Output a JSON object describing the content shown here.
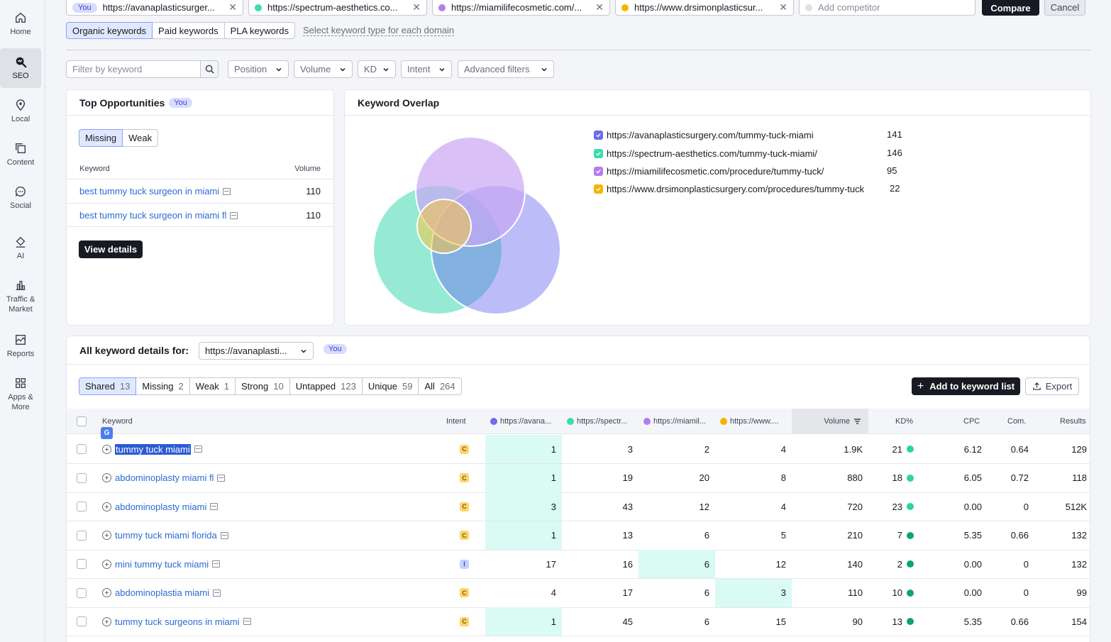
{
  "sidebar": {
    "items": [
      {
        "label": "Home",
        "icon": "home-icon"
      },
      {
        "label": "SEO",
        "icon": "seo-icon",
        "active": true
      },
      {
        "label": "Local",
        "icon": "location-pin-icon"
      },
      {
        "label": "Content",
        "icon": "content-icon"
      },
      {
        "label": "Social",
        "icon": "chat-bubble-icon"
      },
      {
        "label": "AI",
        "icon": "ai-icon"
      },
      {
        "label": "Traffic & Market",
        "icon": "bar-chart-icon"
      },
      {
        "label": "Reports",
        "icon": "reports-icon"
      },
      {
        "label": "Apps & More",
        "icon": "grid-icon"
      }
    ]
  },
  "compare": {
    "you_label": "You",
    "domains": [
      {
        "url": "https://avanaplasticsurger...",
        "color": "#6b6cf0"
      },
      {
        "url": "https://spectrum-aesthetics.co...",
        "color": "#3fd9b0"
      },
      {
        "url": "https://miamilifecosmetic.com/...",
        "color": "#b67cf0"
      },
      {
        "url": "https://www.drsimonplasticsur...",
        "color": "#f5b400"
      }
    ],
    "add_placeholder": "Add competitor",
    "compare_label": "Compare",
    "cancel_label": "Cancel"
  },
  "keyword_types": {
    "tabs": [
      "Organic keywords",
      "Paid keywords",
      "PLA keywords"
    ],
    "active": 0,
    "select_link": "Select keyword type for each domain"
  },
  "filters": {
    "search_placeholder": "Filter by keyword",
    "dropdowns": [
      "Position",
      "Volume",
      "KD",
      "Intent",
      "Advanced filters"
    ]
  },
  "top_opportunities": {
    "title": "Top Opportunities",
    "badge": "You",
    "tabs": [
      "Missing",
      "Weak"
    ],
    "col_keyword": "Keyword",
    "col_volume": "Volume",
    "rows": [
      {
        "keyword": "best tummy tuck surgeon in miami",
        "volume": "110"
      },
      {
        "keyword": "best tummy tuck surgeon in miami fl",
        "volume": "110"
      }
    ],
    "view_details": "View details"
  },
  "overlap": {
    "title": "Keyword Overlap",
    "legend": [
      {
        "url": "https://avanaplasticsurgery.com/tummy-tuck-miami",
        "count": "141",
        "color": "#6b6cf0"
      },
      {
        "url": "https://spectrum-aesthetics.com/tummy-tuck-miami/",
        "count": "146",
        "color": "#3fd9b0"
      },
      {
        "url": "https://miamilifecosmetic.com/procedure/tummy-tuck/",
        "count": "95",
        "color": "#b67cf0"
      },
      {
        "url": "https://www.drsimonplasticsurgery.com/procedures/tummy-tuck",
        "count": "22",
        "color": "#f5b400"
      }
    ]
  },
  "details": {
    "title": "All keyword details for:",
    "domain_select": "https://avanaplasti...",
    "badge": "You",
    "categories": [
      {
        "label": "Shared",
        "count": "13"
      },
      {
        "label": "Missing",
        "count": "2"
      },
      {
        "label": "Weak",
        "count": "1"
      },
      {
        "label": "Strong",
        "count": "10"
      },
      {
        "label": "Untapped",
        "count": "123"
      },
      {
        "label": "Unique",
        "count": "59"
      },
      {
        "label": "All",
        "count": "264"
      }
    ],
    "add_button": "Add to keyword list",
    "export_button": "Export",
    "columns": {
      "keyword": "Keyword",
      "intent": "Intent",
      "d1": "https://avana...",
      "d2": "https://spectr...",
      "d3": "https://miamil...",
      "d4": "https://www....",
      "volume": "Volume",
      "kd": "KD%",
      "cpc": "CPC",
      "com": "Com.",
      "results": "Results"
    },
    "rows": [
      {
        "keyword": "tummy tuck miami",
        "intent": "C",
        "d1": "1",
        "d2": "3",
        "d3": "2",
        "d4": "4",
        "volume": "1.9K",
        "kd": "21",
        "kd_color": "#2bd4a0",
        "cpc": "6.12",
        "com": "0.64",
        "results": "129",
        "best": "d1",
        "selected": true
      },
      {
        "keyword": "abdominoplasty miami fl",
        "intent": "C",
        "d1": "1",
        "d2": "19",
        "d3": "20",
        "d4": "8",
        "volume": "880",
        "kd": "18",
        "kd_color": "#2bd4a0",
        "cpc": "6.05",
        "com": "0.72",
        "results": "118",
        "best": "d1"
      },
      {
        "keyword": "abdominoplasty miami",
        "intent": "C",
        "d1": "3",
        "d2": "43",
        "d3": "12",
        "d4": "4",
        "volume": "720",
        "kd": "23",
        "kd_color": "#2bd4a0",
        "cpc": "0.00",
        "com": "0",
        "results": "512K",
        "best": "d1"
      },
      {
        "keyword": "tummy tuck miami florida",
        "intent": "C",
        "d1": "1",
        "d2": "13",
        "d3": "6",
        "d4": "5",
        "volume": "210",
        "kd": "7",
        "kd_color": "#0fa36e",
        "cpc": "5.35",
        "com": "0.66",
        "results": "132",
        "best": "d1"
      },
      {
        "keyword": "mini tummy tuck miami",
        "intent": "I",
        "d1": "17",
        "d2": "16",
        "d3": "6",
        "d4": "12",
        "volume": "140",
        "kd": "2",
        "kd_color": "#0fa36e",
        "cpc": "0.00",
        "com": "0",
        "results": "132",
        "best": "d3"
      },
      {
        "keyword": "abdominoplastia miami",
        "intent": "C",
        "d1": "4",
        "d2": "17",
        "d3": "6",
        "d4": "3",
        "volume": "110",
        "kd": "10",
        "kd_color": "#0fa36e",
        "cpc": "0.00",
        "com": "0",
        "results": "99",
        "best": "d4"
      },
      {
        "keyword": "tummy tuck surgeons in miami",
        "intent": "C",
        "d1": "1",
        "d2": "45",
        "d3": "6",
        "d4": "15",
        "volume": "90",
        "kd": "13",
        "kd_color": "#0fa36e",
        "cpc": "5.35",
        "com": "0.66",
        "results": "154",
        "best": "d1"
      }
    ]
  }
}
